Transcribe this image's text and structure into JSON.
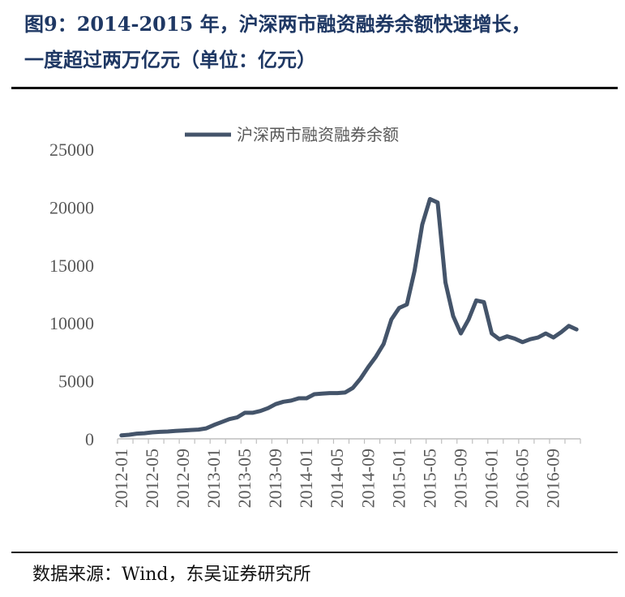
{
  "title_line1": "图9：2014-2015 年，沪深两市融资融券余额快速增长，",
  "title_line2": "一度超过两万亿元（单位：亿元）",
  "source": "数据来源：Wind，东吴证券研究所",
  "chart_data": {
    "type": "line",
    "title": "",
    "xlabel": "",
    "ylabel": "",
    "ylim": [
      0,
      25000
    ],
    "yticks": [
      0,
      5000,
      10000,
      15000,
      20000,
      25000
    ],
    "xtick_labels": [
      "2012-01",
      "2012-05",
      "2012-09",
      "2013-01",
      "2013-05",
      "2013-09",
      "2014-01",
      "2014-05",
      "2014-09",
      "2015-01",
      "2015-05",
      "2015-09",
      "2016-01",
      "2016-05",
      "2016-09"
    ],
    "legend": "top-center",
    "grid": false,
    "color": "#44546a",
    "series": [
      {
        "name": "沪深两市融资融券余额",
        "x": [
          "2012-01",
          "2012-02",
          "2012-03",
          "2012-04",
          "2012-05",
          "2012-06",
          "2012-07",
          "2012-08",
          "2012-09",
          "2012-10",
          "2012-11",
          "2012-12",
          "2013-01",
          "2013-02",
          "2013-03",
          "2013-04",
          "2013-05",
          "2013-06",
          "2013-07",
          "2013-08",
          "2013-09",
          "2013-10",
          "2013-11",
          "2013-12",
          "2014-01",
          "2014-02",
          "2014-03",
          "2014-04",
          "2014-05",
          "2014-06",
          "2014-07",
          "2014-08",
          "2014-09",
          "2014-10",
          "2014-11",
          "2014-12",
          "2015-01",
          "2015-02",
          "2015-03",
          "2015-04",
          "2015-05",
          "2015-06",
          "2015-07",
          "2015-08",
          "2015-09",
          "2015-10",
          "2015-11",
          "2015-12",
          "2016-01",
          "2016-02",
          "2016-03",
          "2016-04",
          "2016-05",
          "2016-06",
          "2016-07",
          "2016-08",
          "2016-09",
          "2016-10",
          "2016-11",
          "2016-12"
        ],
        "values": [
          300,
          350,
          450,
          480,
          560,
          600,
          630,
          680,
          720,
          760,
          800,
          900,
          1200,
          1450,
          1700,
          1850,
          2250,
          2250,
          2400,
          2650,
          3000,
          3200,
          3300,
          3500,
          3500,
          3850,
          3900,
          3950,
          3950,
          4000,
          4400,
          5200,
          6200,
          7100,
          8200,
          10300,
          11300,
          11600,
          14500,
          18500,
          20700,
          20400,
          13500,
          10600,
          9100,
          10300,
          11950,
          11800,
          9100,
          8600,
          8850,
          8650,
          8350,
          8600,
          8750,
          9100,
          8750,
          9200,
          9750,
          9450
        ]
      }
    ]
  }
}
